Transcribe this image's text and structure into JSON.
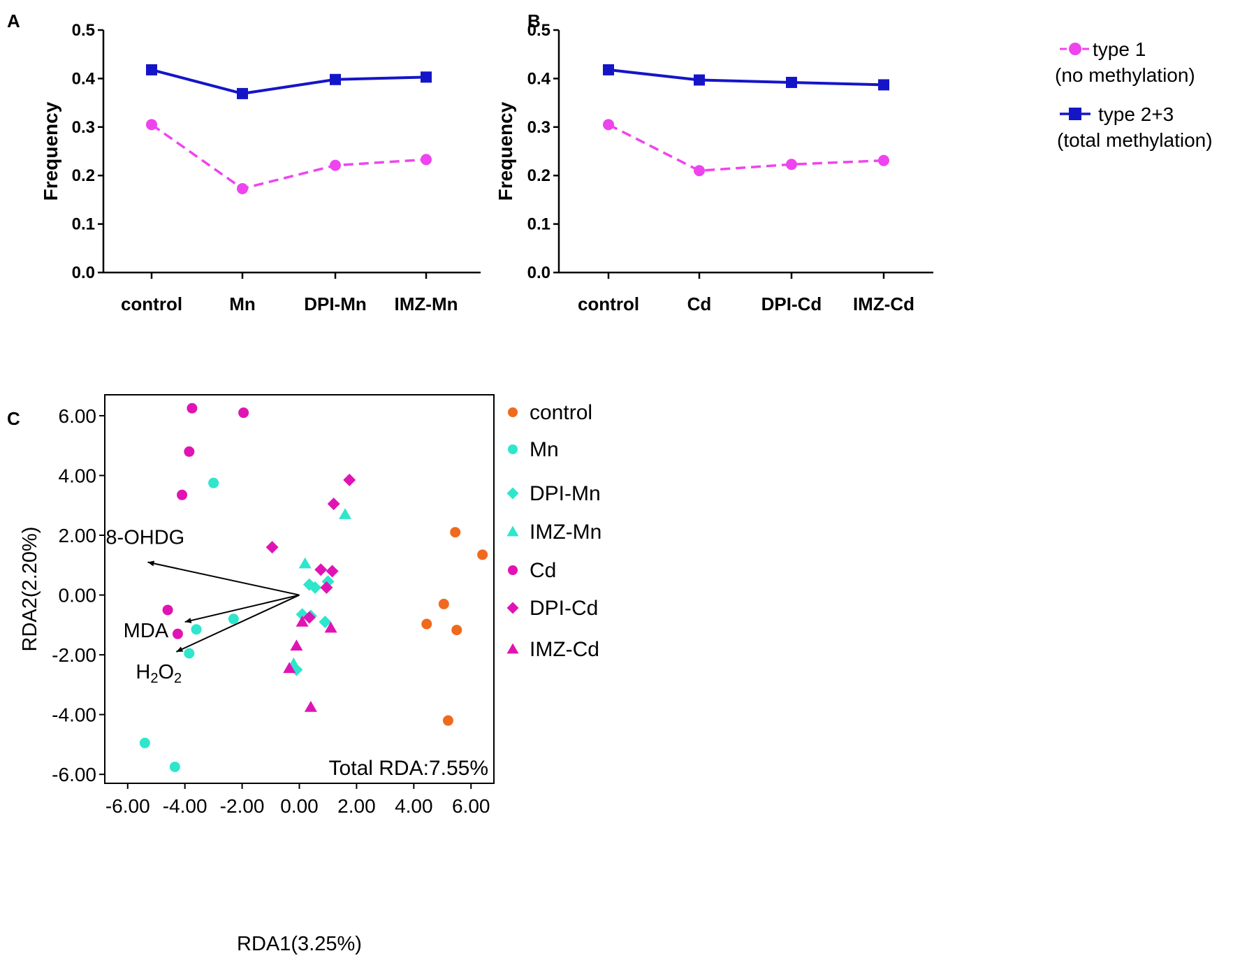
{
  "colors": {
    "type1": "#ee44ee",
    "type23": "#1515c8",
    "control": "#f06a1e",
    "Mn": "#2ee6cc",
    "Cd": "#e014b4"
  },
  "panels": {
    "A": "A",
    "B": "B",
    "C": "C"
  },
  "legend_ab": {
    "type1_line1": "type 1",
    "type1_line2": "(no methylation)",
    "type23_line1": "type 2+3",
    "type23_line2": "(total methylation)"
  },
  "chart_data": [
    {
      "panel": "A",
      "type": "line",
      "categories": [
        "control",
        "Mn",
        "DPI-Mn",
        "IMZ-Mn"
      ],
      "ylabel": "Frequency",
      "ylim": [
        0,
        0.5
      ],
      "yticks": [
        "0.0",
        "0.1",
        "0.2",
        "0.3",
        "0.4",
        "0.5"
      ],
      "series": [
        {
          "name": "type 1 (no methylation)",
          "values": [
            0.305,
            0.173,
            0.221,
            0.233
          ]
        },
        {
          "name": "type 2+3 (total methylation)",
          "values": [
            0.418,
            0.369,
            0.398,
            0.403
          ]
        }
      ]
    },
    {
      "panel": "B",
      "type": "line",
      "categories": [
        "control",
        "Cd",
        "DPI-Cd",
        "IMZ-Cd"
      ],
      "ylabel": "Frequency",
      "ylim": [
        0,
        0.5
      ],
      "yticks": [
        "0.0",
        "0.1",
        "0.2",
        "0.3",
        "0.4",
        "0.5"
      ],
      "series": [
        {
          "name": "type 1 (no methylation)",
          "values": [
            0.305,
            0.21,
            0.223,
            0.231
          ]
        },
        {
          "name": "type 2+3 (total methylation)",
          "values": [
            0.418,
            0.397,
            0.392,
            0.387
          ]
        }
      ]
    },
    {
      "panel": "C",
      "type": "scatter",
      "xlabel": "RDA1(3.25%)",
      "ylabel": "RDA2(2.20%)",
      "xlim": [
        -6.8,
        6.8
      ],
      "ylim": [
        -6.3,
        6.7
      ],
      "xticks": [
        "-6.00",
        "-4.00",
        "-2.00",
        "0.00",
        "2.00",
        "4.00",
        "6.00"
      ],
      "yticks": [
        "6.00",
        "4.00",
        "2.00",
        "0.00",
        "-2.00",
        "-4.00",
        "-6.00"
      ],
      "annotation": "Total RDA:7.55%",
      "arrows": [
        {
          "label": "8-OHDG",
          "x": -5.3,
          "y": 1.1
        },
        {
          "label": "MDA",
          "x": -4.0,
          "y": -0.9
        },
        {
          "label": "H2O2",
          "x": -4.3,
          "y": -1.9
        }
      ],
      "series": [
        {
          "name": "control",
          "marker": "circle",
          "color": "control",
          "points": [
            [
              5.45,
              2.1
            ],
            [
              6.4,
              1.35
            ],
            [
              5.05,
              -0.3
            ],
            [
              4.45,
              -0.97
            ],
            [
              5.5,
              -1.17
            ],
            [
              5.2,
              -4.2
            ]
          ]
        },
        {
          "name": "Mn",
          "marker": "circle",
          "color": "Mn",
          "points": [
            [
              -3.0,
              3.75
            ],
            [
              -2.3,
              -0.8
            ],
            [
              -3.6,
              -1.15
            ],
            [
              -3.85,
              -1.95
            ],
            [
              -5.4,
              -4.95
            ],
            [
              -4.35,
              -5.75
            ]
          ]
        },
        {
          "name": "DPI-Mn",
          "marker": "diamond",
          "color": "Mn",
          "points": [
            [
              0.35,
              0.35
            ],
            [
              0.55,
              0.25
            ],
            [
              1.0,
              0.45
            ],
            [
              0.1,
              -0.65
            ],
            [
              0.4,
              -0.7
            ],
            [
              0.9,
              -0.9
            ],
            [
              -0.1,
              -2.5
            ]
          ]
        },
        {
          "name": "IMZ-Mn",
          "marker": "triangle",
          "color": "Mn",
          "points": [
            [
              1.6,
              2.7
            ],
            [
              0.2,
              1.05
            ],
            [
              -0.2,
              -2.3
            ]
          ]
        },
        {
          "name": "Cd",
          "marker": "circle",
          "color": "Cd",
          "points": [
            [
              -3.75,
              6.25
            ],
            [
              -1.95,
              6.1
            ],
            [
              -3.85,
              4.8
            ],
            [
              -4.1,
              3.35
            ],
            [
              -4.6,
              -0.5
            ],
            [
              -4.25,
              -1.3
            ]
          ]
        },
        {
          "name": "DPI-Cd",
          "marker": "diamond",
          "color": "Cd",
          "points": [
            [
              1.75,
              3.85
            ],
            [
              1.2,
              3.05
            ],
            [
              -0.95,
              1.6
            ],
            [
              0.75,
              0.85
            ],
            [
              1.15,
              0.8
            ],
            [
              0.95,
              0.25
            ],
            [
              0.35,
              -0.75
            ]
          ]
        },
        {
          "name": "IMZ-Cd",
          "marker": "triangle",
          "color": "Cd",
          "points": [
            [
              0.1,
              -0.9
            ],
            [
              1.1,
              -1.1
            ],
            [
              -0.1,
              -1.7
            ],
            [
              -0.35,
              -2.45
            ],
            [
              0.4,
              -3.75
            ]
          ]
        }
      ]
    }
  ],
  "legend_c": [
    "control",
    "Mn",
    "DPI-Mn",
    "IMZ-Mn",
    "Cd",
    "DPI-Cd",
    "IMZ-Cd"
  ]
}
